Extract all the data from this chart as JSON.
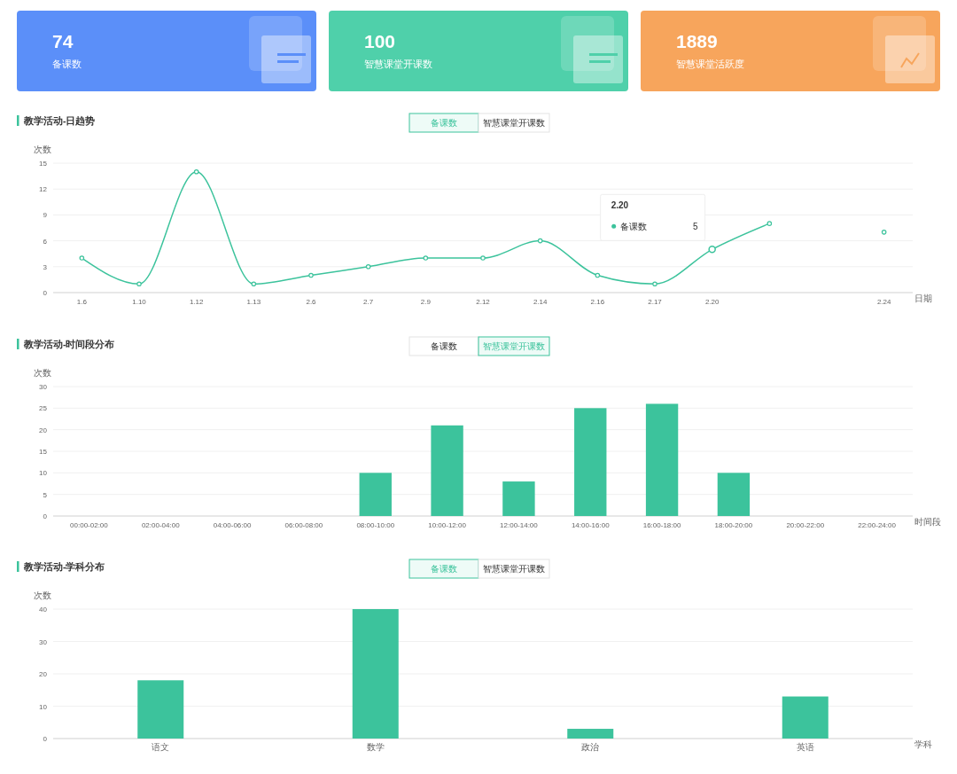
{
  "chart_data": [
    {
      "type": "other",
      "categories": [
        "备课数",
        "智慧课堂开课数",
        "智慧课堂活跃度"
      ],
      "values": [
        74,
        100,
        1889
      ],
      "colors": [
        "#5b8ff9",
        "#4fd0aa",
        "#f7a55c"
      ],
      "data_labels": true
    },
    {
      "type": "line",
      "title": "教学活动-日趋势",
      "ylabel": "次数",
      "xlabel": "日期",
      "categories": [
        "1.6",
        "1.10",
        "1.12",
        "1.13",
        "2.6",
        "2.7",
        "2.9",
        "2.12",
        "2.14",
        "2.16",
        "2.17",
        "2.20",
        null,
        null,
        "2.24"
      ],
      "series": [
        {
          "name": "备课数",
          "color": "#3cc39c",
          "values": [
            4,
            1,
            14,
            1,
            2,
            3,
            4,
            4,
            6,
            2,
            1,
            5,
            8,
            null,
            7
          ],
          "value_labels": [
            null,
            null,
            null,
            null,
            null,
            null,
            null,
            null,
            null,
            null,
            null,
            "5",
            null,
            null,
            null
          ]
        }
      ],
      "ylim": [
        0,
        15
      ],
      "yticks": [
        0,
        3,
        6,
        9,
        12,
        15
      ],
      "grid": "y",
      "legend": "top",
      "marker": "circle",
      "line_style": "solid",
      "annotations": [
        "智慧课堂开课数"
      ]
    },
    {
      "type": "bar",
      "title": "教学活动-时间段分布",
      "ylabel": "次数",
      "xlabel": "时间段",
      "categories": [
        "00:00-02:00",
        "02:00-04:00",
        "04:00-06:00",
        "06:00-08:00",
        "08:00-10:00",
        "10:00-12:00",
        "12:00-14:00",
        "14:00-16:00",
        "16:00-18:00",
        "18:00-20:00",
        "20:00-22:00",
        "22:00-24:00"
      ],
      "series": [
        {
          "name": "智慧课堂开课数",
          "color": "#3cc39c",
          "values": [
            0,
            0,
            0,
            0,
            10,
            21,
            8,
            25,
            26,
            10,
            0,
            0
          ]
        }
      ],
      "ylim": [
        0,
        30
      ],
      "yticks": [
        0,
        5,
        10,
        15,
        20,
        25,
        30
      ],
      "grid": "y",
      "legend": "top",
      "annotations": [
        "备课数"
      ]
    },
    {
      "type": "bar",
      "title": "教学活动-学科分布",
      "ylabel": "次数",
      "xlabel": "学科",
      "categories": [
        "语文",
        "数学",
        "政治",
        "英语"
      ],
      "series": [
        {
          "name": "备课数",
          "color": "#3cc39c",
          "values": [
            18,
            40,
            3,
            13
          ]
        }
      ],
      "ylim": [
        0,
        40
      ],
      "yticks": [
        0,
        10,
        20,
        30,
        40
      ],
      "grid": "y",
      "legend": "top",
      "annotations": [
        "智慧课堂开课数"
      ]
    }
  ]
}
